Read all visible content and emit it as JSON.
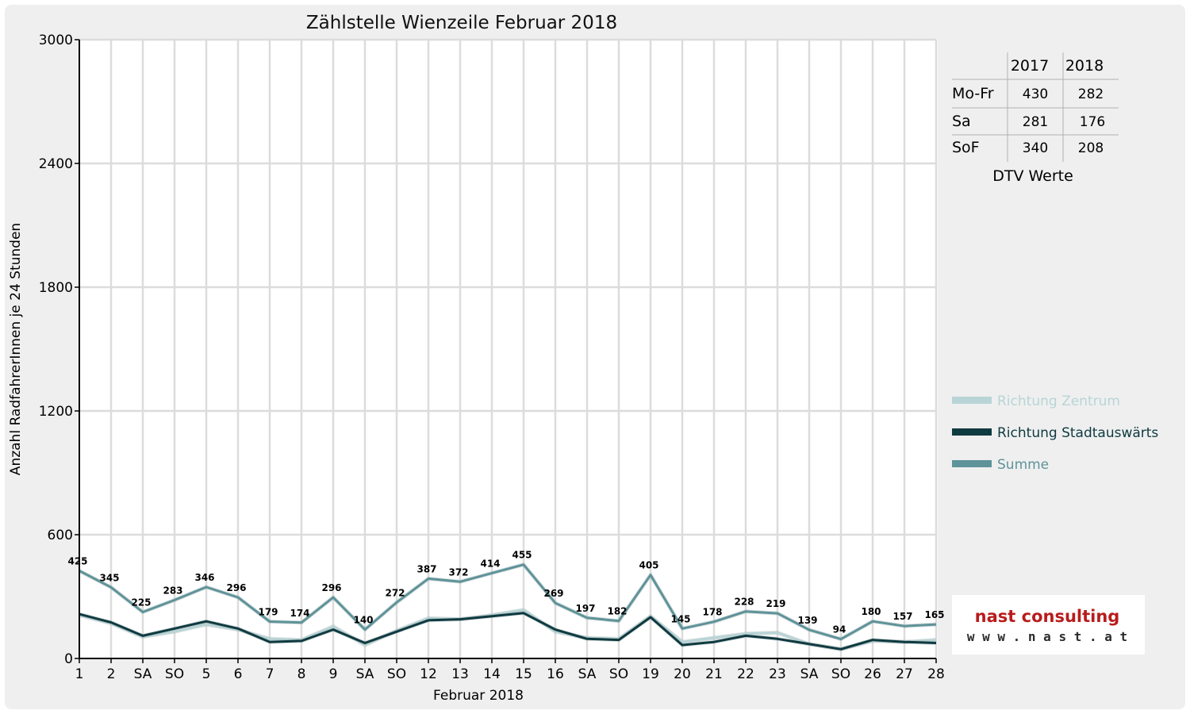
{
  "chart_data": {
    "type": "line",
    "title": "Zählstelle Wienzeile Februar 2018",
    "xlabel": "Februar 2018",
    "ylabel": "Anzahl RadfahrerInnen je 24 Stunden",
    "ylim": [
      0,
      3000
    ],
    "yticks": [
      "0",
      "600",
      "1200",
      "1800",
      "2400",
      "3000"
    ],
    "grid": true,
    "legend_position": "right",
    "categories": [
      "1",
      "2",
      "SA",
      "SO",
      "5",
      "6",
      "7",
      "8",
      "9",
      "SA",
      "SO",
      "12",
      "13",
      "14",
      "15",
      "16",
      "SA",
      "SO",
      "19",
      "20",
      "21",
      "22",
      "23",
      "SA",
      "SO",
      "26",
      "27",
      "28"
    ],
    "highlight_categories": [
      "SO"
    ],
    "highlight_color": "#e00000",
    "series": [
      {
        "name": "Richtung Zentrum",
        "color": "#b8d4d6",
        "values": [
          210,
          170,
          105,
          130,
          165,
          140,
          95,
          90,
          155,
          65,
          135,
          195,
          190,
          210,
          235,
          130,
          100,
          95,
          205,
          80,
          100,
          120,
          125,
          70,
          45,
          85,
          80,
          90
        ]
      },
      {
        "name": "Richtung Stadtauswärts",
        "color": "#0e3a40",
        "values": [
          215,
          175,
          110,
          145,
          180,
          145,
          80,
          85,
          140,
          75,
          130,
          185,
          190,
          205,
          220,
          140,
          95,
          90,
          200,
          65,
          80,
          110,
          95,
          70,
          45,
          90,
          80,
          75
        ]
      },
      {
        "name": "Summe",
        "color": "#5e9399",
        "values": [
          425,
          345,
          225,
          283,
          346,
          296,
          179,
          174,
          296,
          140,
          272,
          387,
          372,
          414,
          455,
          269,
          197,
          182,
          405,
          145,
          178,
          228,
          219,
          139,
          94,
          180,
          157,
          165
        ]
      }
    ],
    "data_labels": [
      "425",
      "345",
      "225",
      "283",
      "346",
      "296",
      "179",
      "174",
      "296",
      "140",
      "272",
      "387",
      "372",
      "414",
      "455",
      "269",
      "197",
      "182",
      "405",
      "145",
      "178",
      "228",
      "219",
      "139",
      "94",
      "180",
      "157",
      "165"
    ]
  },
  "dtv_table": {
    "caption": "DTV Werte",
    "columns": [
      "2017",
      "2018"
    ],
    "rows": [
      {
        "label": "Mo-Fr",
        "v2017": "430",
        "v2018": "282"
      },
      {
        "label": "Sa",
        "v2017": "281",
        "v2018": "176"
      },
      {
        "label": "SoF",
        "v2017": "340",
        "v2018": "208"
      }
    ]
  },
  "logo": {
    "line1": "nast consulting",
    "line2": "w w w . n a s t . a t",
    "color1": "#b81c1c",
    "color2": "#555555"
  }
}
